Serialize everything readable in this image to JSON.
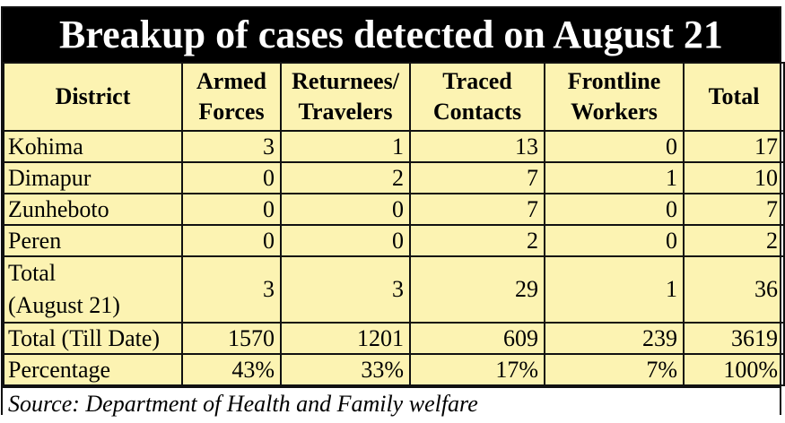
{
  "title": "Breakup of cases detected on August 21",
  "columns": {
    "district": "District",
    "armed_1": "Armed",
    "armed_2": "Forces",
    "ret_1": "Returnees/",
    "ret_2": "Travelers",
    "traced_1": "Traced",
    "traced_2": "Contacts",
    "front_1": "Frontline",
    "front_2": "Workers",
    "total": "Total"
  },
  "rows": [
    {
      "district": "Kohima",
      "armed": "3",
      "returnees": "1",
      "traced": "13",
      "frontline": "0",
      "total": "17"
    },
    {
      "district": "Dimapur",
      "armed": "0",
      "returnees": "2",
      "traced": "7",
      "frontline": "1",
      "total": "10"
    },
    {
      "district": "Zunheboto",
      "armed": "0",
      "returnees": "0",
      "traced": "7",
      "frontline": "0",
      "total": "7"
    },
    {
      "district": "Peren",
      "armed": "0",
      "returnees": "0",
      "traced": "2",
      "frontline": "0",
      "total": "2"
    }
  ],
  "total_aug21": {
    "label_1": "Total",
    "label_2": "(August 21)",
    "armed": "3",
    "returnees": "3",
    "traced": "29",
    "frontline": "1",
    "total": "36"
  },
  "total_till_date": {
    "label": "Total (Till Date)",
    "armed": "1570",
    "returnees": "1201",
    "traced": "609",
    "frontline": "239",
    "total": "3619"
  },
  "percentage": {
    "label": "Percentage",
    "armed": "43%",
    "returnees": "33%",
    "traced": "17%",
    "frontline": "7%",
    "total": "100%"
  },
  "source": "Source: Department of Health and Family welfare"
}
